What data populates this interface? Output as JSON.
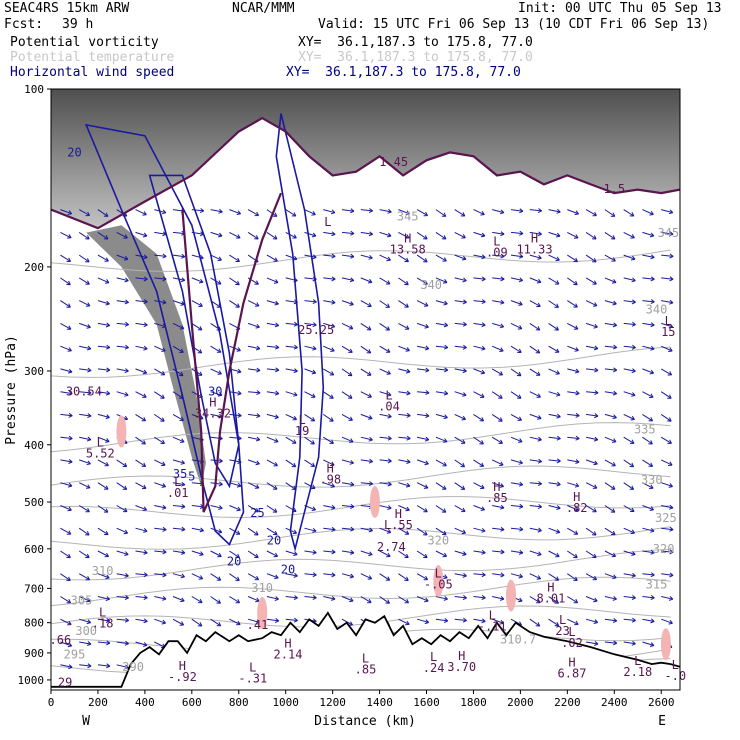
{
  "header": {
    "model": "SEAC4RS 15km ARW",
    "org": "NCAR/MMM",
    "init": "Init: 00 UTC Thu 05 Sep 13",
    "fcst_label": "Fcst:",
    "fcst_value": "39 h",
    "valid": "Valid: 15 UTC Fri 06 Sep 13 (10 CDT Fri 06 Sep 13)"
  },
  "fields": [
    {
      "name": "Potential vorticity",
      "xy": "XY=  36.1,187.3 to 175.8, 77.0",
      "color": "#000000"
    },
    {
      "name": "Potential temperature",
      "xy": "XY=  36.1,187.3 to 175.8, 77.0",
      "color": "#c8c8c8"
    },
    {
      "name": "Horizontal wind speed",
      "xy": "XY=  36.1,187.3 to 175.8, 77.0",
      "color": "#000080"
    }
  ],
  "chart_data": {
    "type": "cross-section",
    "xlabel": "Distance (km)",
    "ylabel": "Pressure (hPa)",
    "xlim": [
      0,
      2680
    ],
    "ylim": [
      1040,
      100
    ],
    "x_ticks": [
      0,
      200,
      400,
      600,
      800,
      1000,
      1200,
      1400,
      1600,
      1800,
      2000,
      2200,
      2400,
      2600
    ],
    "y_ticks": [
      100,
      200,
      300,
      400,
      500,
      600,
      700,
      800,
      900,
      1000
    ],
    "y_scale": "log",
    "endpoint_labels": {
      "left": "W",
      "right": "E"
    },
    "terrain_pressure": [
      [
        0,
        1027
      ],
      [
        300,
        1027
      ],
      [
        340,
        940
      ],
      [
        380,
        900
      ],
      [
        420,
        880
      ],
      [
        460,
        905
      ],
      [
        500,
        860
      ],
      [
        540,
        860
      ],
      [
        580,
        900
      ],
      [
        620,
        840
      ],
      [
        660,
        860
      ],
      [
        700,
        830
      ],
      [
        760,
        860
      ],
      [
        800,
        840
      ],
      [
        840,
        860
      ],
      [
        900,
        850
      ],
      [
        940,
        830
      ],
      [
        980,
        840
      ],
      [
        1020,
        800
      ],
      [
        1060,
        830
      ],
      [
        1100,
        790
      ],
      [
        1140,
        810
      ],
      [
        1180,
        770
      ],
      [
        1220,
        820
      ],
      [
        1260,
        800
      ],
      [
        1300,
        840
      ],
      [
        1340,
        790
      ],
      [
        1380,
        800
      ],
      [
        1420,
        780
      ],
      [
        1460,
        840
      ],
      [
        1500,
        810
      ],
      [
        1540,
        870
      ],
      [
        1580,
        850
      ],
      [
        1620,
        870
      ],
      [
        1660,
        840
      ],
      [
        1700,
        860
      ],
      [
        1740,
        830
      ],
      [
        1780,
        850
      ],
      [
        1820,
        810
      ],
      [
        1860,
        850
      ],
      [
        1900,
        800
      ],
      [
        1940,
        840
      ],
      [
        1980,
        800
      ],
      [
        2040,
        830
      ],
      [
        2100,
        845
      ],
      [
        2200,
        860
      ],
      [
        2300,
        880
      ],
      [
        2400,
        905
      ],
      [
        2500,
        925
      ],
      [
        2560,
        940
      ],
      [
        2600,
        935
      ],
      [
        2640,
        940
      ],
      [
        2680,
        950
      ]
    ],
    "theta_contour_labels": [
      {
        "x": 1520,
        "p": 167,
        "text": "345"
      },
      {
        "x": 2630,
        "p": 178,
        "text": "345"
      },
      {
        "x": 1620,
        "p": 218,
        "text": "340"
      },
      {
        "x": 2580,
        "p": 240,
        "text": "340"
      },
      {
        "x": 2530,
        "p": 383,
        "text": "335"
      },
      {
        "x": 2560,
        "p": 466,
        "text": "330"
      },
      {
        "x": 2620,
        "p": 540,
        "text": "325"
      },
      {
        "x": 1650,
        "p": 590,
        "text": "320"
      },
      {
        "x": 2610,
        "p": 610,
        "text": "320"
      },
      {
        "x": 2580,
        "p": 700,
        "text": "315"
      },
      {
        "x": 220,
        "p": 665,
        "text": "310"
      },
      {
        "x": 900,
        "p": 710,
        "text": "310"
      },
      {
        "x": 130,
        "p": 745,
        "text": "305"
      },
      {
        "x": 150,
        "p": 840,
        "text": "300"
      },
      {
        "x": 100,
        "p": 920,
        "text": "295"
      },
      {
        "x": 350,
        "p": 965,
        "text": "290"
      },
      {
        "x": 1990,
        "p": 868,
        "text": "310.7"
      }
    ],
    "wind_contour_labels": [
      {
        "x": 100,
        "p": 130,
        "text": "20"
      },
      {
        "x": 700,
        "p": 330,
        "text": "30"
      },
      {
        "x": 550,
        "p": 455,
        "text": "35"
      },
      {
        "x": 880,
        "p": 530,
        "text": "25"
      },
      {
        "x": 950,
        "p": 590,
        "text": "20"
      },
      {
        "x": 780,
        "p": 640,
        "text": "20"
      },
      {
        "x": 1010,
        "p": 660,
        "text": "20"
      },
      {
        "x": 600,
        "p": 460,
        "text": "5"
      }
    ],
    "extrema_markers": [
      {
        "x": 1180,
        "p": 178,
        "kind": "L",
        "value": ""
      },
      {
        "x": 1130,
        "p": 260,
        "kind": "",
        "value": "25.25"
      },
      {
        "x": 1520,
        "p": 190,
        "kind": "H",
        "value": "13.58"
      },
      {
        "x": 1460,
        "p": 135,
        "kind": "",
        "value": "1.45"
      },
      {
        "x": 1900,
        "p": 192,
        "kind": "L",
        "value": ".09"
      },
      {
        "x": 2060,
        "p": 190,
        "kind": "H",
        "value": "11.33"
      },
      {
        "x": 2400,
        "p": 150,
        "kind": "",
        "value": "1.5"
      },
      {
        "x": 2630,
        "p": 262,
        "kind": "L",
        "value": "15"
      },
      {
        "x": 140,
        "p": 330,
        "kind": "",
        "value": "30.54"
      },
      {
        "x": 690,
        "p": 360,
        "kind": "H",
        "value": "34.32"
      },
      {
        "x": 1070,
        "p": 385,
        "kind": "L",
        "value": "19"
      },
      {
        "x": 1440,
        "p": 350,
        "kind": "L",
        "value": ".04"
      },
      {
        "x": 210,
        "p": 420,
        "kind": "L",
        "value": "5.52"
      },
      {
        "x": 540,
        "p": 490,
        "kind": "L",
        "value": ".01"
      },
      {
        "x": 1190,
        "p": 465,
        "kind": "H",
        "value": ".98"
      },
      {
        "x": 1900,
        "p": 500,
        "kind": "H",
        "value": ".85"
      },
      {
        "x": 2240,
        "p": 520,
        "kind": "H",
        "value": ".82"
      },
      {
        "x": 1480,
        "p": 555,
        "kind": "H",
        "value": "L.55"
      },
      {
        "x": 1450,
        "p": 605,
        "kind": "",
        "value": "2.74"
      },
      {
        "x": 1650,
        "p": 700,
        "kind": "L",
        "value": "-.05"
      },
      {
        "x": 2130,
        "p": 740,
        "kind": "H",
        "value": "8.01"
      },
      {
        "x": 880,
        "p": 820,
        "kind": "",
        "value": ".41"
      },
      {
        "x": 220,
        "p": 815,
        "kind": "L",
        "value": ".18"
      },
      {
        "x": 40,
        "p": 870,
        "kind": "",
        "value": ".66"
      },
      {
        "x": 1880,
        "p": 825,
        "kind": "L",
        "value": "-.11"
      },
      {
        "x": 2180,
        "p": 840,
        "kind": "L",
        "value": "23"
      },
      {
        "x": 2220,
        "p": 880,
        "kind": "L",
        "value": ".02"
      },
      {
        "x": 1010,
        "p": 920,
        "kind": "H",
        "value": "2.14"
      },
      {
        "x": 1340,
        "p": 975,
        "kind": "L",
        "value": ".85"
      },
      {
        "x": 1630,
        "p": 970,
        "kind": "L",
        "value": ".24"
      },
      {
        "x": 1750,
        "p": 965,
        "kind": "H",
        "value": "3.70"
      },
      {
        "x": 2220,
        "p": 990,
        "kind": "H",
        "value": "6.87"
      },
      {
        "x": 2500,
        "p": 985,
        "kind": "L",
        "value": "2.18"
      },
      {
        "x": 2660,
        "p": 1000,
        "kind": "L",
        "value": "-.0"
      },
      {
        "x": 560,
        "p": 1005,
        "kind": "H",
        "value": "-.92"
      },
      {
        "x": 860,
        "p": 1010,
        "kind": "L",
        "value": "-.31"
      },
      {
        "x": 60,
        "p": 1025,
        "kind": "",
        "value": "29"
      }
    ],
    "pv_tropopause_pressure": [
      [
        0,
        160
      ],
      [
        200,
        172
      ],
      [
        400,
        155
      ],
      [
        600,
        140
      ],
      [
        800,
        118
      ],
      [
        900,
        112
      ],
      [
        1000,
        118
      ],
      [
        1100,
        130
      ],
      [
        1200,
        140
      ],
      [
        1300,
        138
      ],
      [
        1400,
        130
      ],
      [
        1500,
        140
      ],
      [
        1600,
        132
      ],
      [
        1700,
        128
      ],
      [
        1800,
        130
      ],
      [
        1900,
        140
      ],
      [
        2000,
        138
      ],
      [
        2100,
        145
      ],
      [
        2200,
        140
      ],
      [
        2300,
        145
      ],
      [
        2400,
        150
      ],
      [
        2500,
        148
      ],
      [
        2600,
        150
      ],
      [
        2680,
        148
      ]
    ]
  }
}
